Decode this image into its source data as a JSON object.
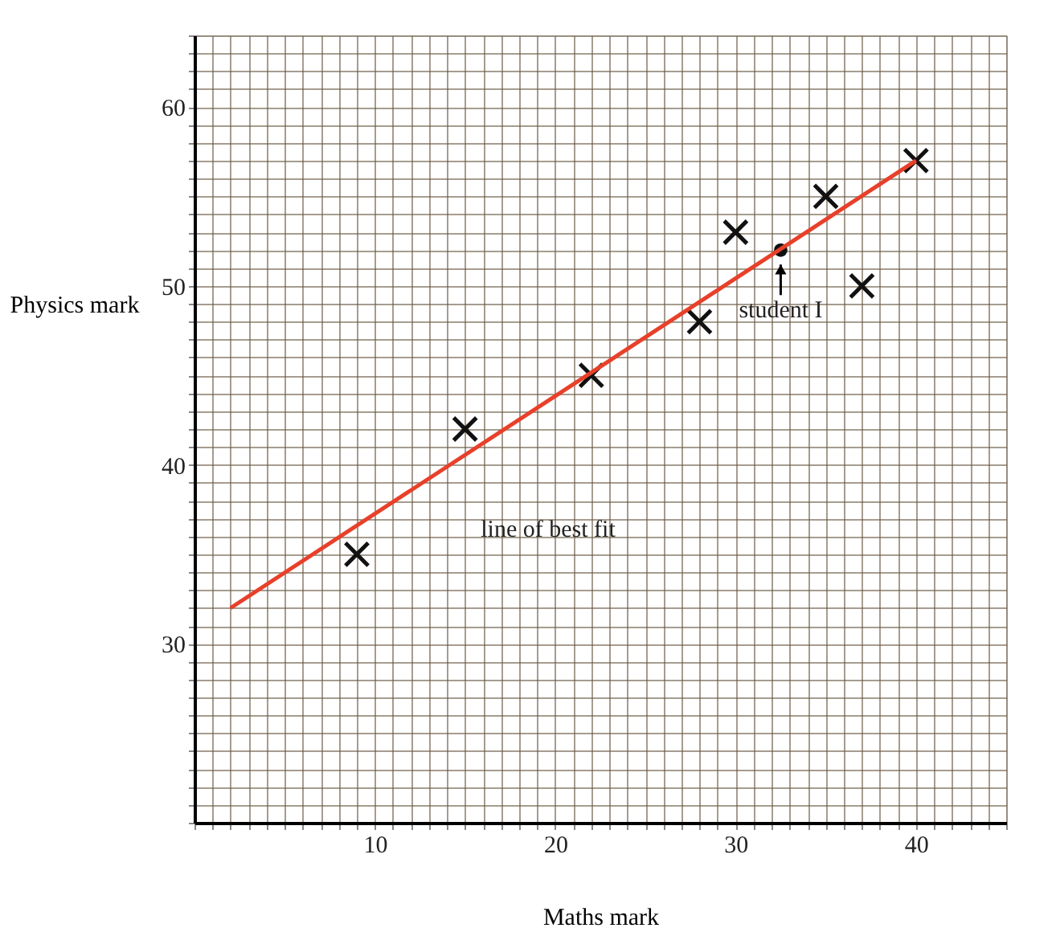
{
  "chart_data": {
    "type": "scatter",
    "xlabel": "Maths mark",
    "ylabel": "Physics mark",
    "xlim": [
      0,
      45
    ],
    "ylim": [
      20,
      64
    ],
    "xticks": [
      {
        "value": 0,
        "label": null
      },
      {
        "value": 1,
        "label": null
      },
      {
        "value": 2,
        "label": null
      },
      {
        "value": 3,
        "label": null
      },
      {
        "value": 4,
        "label": null
      },
      {
        "value": 5,
        "label": null
      },
      {
        "value": 6,
        "label": null
      },
      {
        "value": 7,
        "label": null
      },
      {
        "value": 8,
        "label": null
      },
      {
        "value": 9,
        "label": null
      },
      10,
      {
        "value": 11,
        "label": null
      },
      {
        "value": 12,
        "label": null
      },
      {
        "value": 13,
        "label": null
      },
      {
        "value": 14,
        "label": null
      },
      {
        "value": 15,
        "label": null
      },
      {
        "value": 16,
        "label": null
      },
      {
        "value": 17,
        "label": null
      },
      {
        "value": 18,
        "label": null
      },
      {
        "value": 19,
        "label": null
      },
      20,
      {
        "value": 21,
        "label": null
      },
      {
        "value": 22,
        "label": null
      },
      {
        "value": 23,
        "label": null
      },
      {
        "value": 24,
        "label": null
      },
      {
        "value": 25,
        "label": null
      },
      {
        "value": 26,
        "label": null
      },
      {
        "value": 27,
        "label": null
      },
      {
        "value": 28,
        "label": null
      },
      {
        "value": 29,
        "label": null
      },
      30,
      {
        "value": 31,
        "label": null
      },
      {
        "value": 32,
        "label": null
      },
      {
        "value": 33,
        "label": null
      },
      {
        "value": 34,
        "label": null
      },
      {
        "value": 35,
        "label": null
      },
      {
        "value": 36,
        "label": null
      },
      {
        "value": 37,
        "label": null
      },
      {
        "value": 38,
        "label": null
      },
      {
        "value": 39,
        "label": null
      },
      40,
      {
        "value": 41,
        "label": null
      },
      {
        "value": 42,
        "label": null
      },
      {
        "value": 43,
        "label": null
      },
      {
        "value": 44,
        "label": null
      },
      {
        "value": 45,
        "label": null
      }
    ],
    "yticks": [
      {
        "value": 20,
        "label": null
      },
      {
        "value": 21,
        "label": null
      },
      {
        "value": 22,
        "label": null
      },
      {
        "value": 23,
        "label": null
      },
      {
        "value": 24,
        "label": null
      },
      {
        "value": 25,
        "label": null
      },
      {
        "value": 26,
        "label": null
      },
      {
        "value": 27,
        "label": null
      },
      {
        "value": 28,
        "label": null
      },
      {
        "value": 29,
        "label": null
      },
      30,
      {
        "value": 31,
        "label": null
      },
      {
        "value": 32,
        "label": null
      },
      {
        "value": 33,
        "label": null
      },
      {
        "value": 34,
        "label": null
      },
      {
        "value": 35,
        "label": null
      },
      {
        "value": 36,
        "label": null
      },
      {
        "value": 37,
        "label": null
      },
      {
        "value": 38,
        "label": null
      },
      {
        "value": 39,
        "label": null
      },
      40,
      {
        "value": 41,
        "label": null
      },
      {
        "value": 42,
        "label": null
      },
      {
        "value": 43,
        "label": null
      },
      {
        "value": 44,
        "label": null
      },
      {
        "value": 45,
        "label": null
      },
      {
        "value": 46,
        "label": null
      },
      {
        "value": 47,
        "label": null
      },
      {
        "value": 48,
        "label": null
      },
      {
        "value": 49,
        "label": null
      },
      50,
      {
        "value": 51,
        "label": null
      },
      {
        "value": 52,
        "label": null
      },
      {
        "value": 53,
        "label": null
      },
      {
        "value": 54,
        "label": null
      },
      {
        "value": 55,
        "label": null
      },
      {
        "value": 56,
        "label": null
      },
      {
        "value": 57,
        "label": null
      },
      {
        "value": 58,
        "label": null
      },
      {
        "value": 59,
        "label": null
      },
      60,
      {
        "value": 61,
        "label": null
      },
      {
        "value": 62,
        "label": null
      },
      {
        "value": 63,
        "label": null
      },
      {
        "value": 64,
        "label": null
      }
    ],
    "grid": true,
    "series": [
      {
        "marker": "cross",
        "color": "#111111",
        "x": [
          9,
          15,
          22,
          28,
          30,
          35,
          37,
          40
        ],
        "values": [
          35,
          42,
          45,
          48,
          53,
          55,
          50,
          57
        ]
      },
      {
        "marker": "circle",
        "color": "#111111",
        "x": [
          32.5
        ],
        "values": [
          52
        ]
      },
      {
        "type": "line",
        "color": "#e8402a",
        "x": [
          2,
          40
        ],
        "values": [
          32,
          57
        ]
      }
    ],
    "annotations": [
      "line of best fit",
      {
        "text": "student I",
        "x": 32.5,
        "y": 52
      }
    ]
  }
}
